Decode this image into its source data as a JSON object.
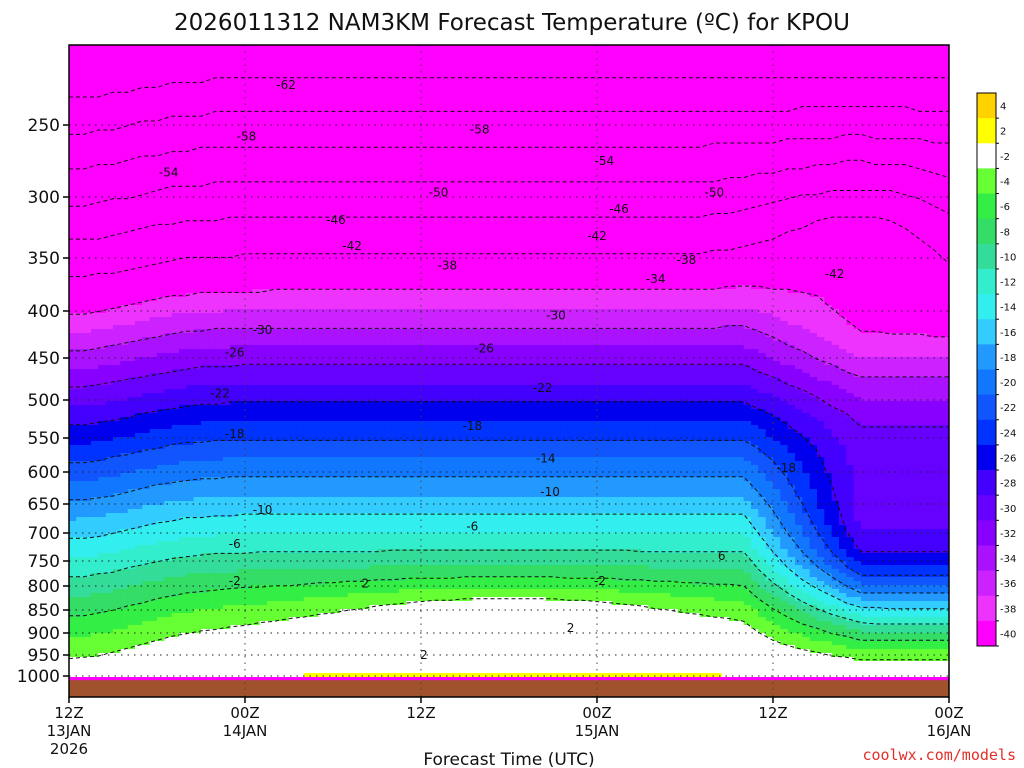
{
  "chart_data": {
    "type": "heatmap",
    "title": "2026011312 NAM3KM Forecast Temperature (ºC) for KPOU",
    "xlabel": "Forecast Time (UTC)",
    "ylabel": "",
    "credit": "coolwx.com/models",
    "x_ticks": [
      {
        "hour": 0,
        "line1": "12Z",
        "line2": "13JAN",
        "line3": "2026"
      },
      {
        "hour": 12,
        "line1": "00Z",
        "line2": "14JAN",
        "line3": ""
      },
      {
        "hour": 24,
        "line1": "12Z",
        "line2": "",
        "line3": ""
      },
      {
        "hour": 36,
        "line1": "00Z",
        "line2": "15JAN",
        "line3": ""
      },
      {
        "hour": 48,
        "line1": "12Z",
        "line2": "",
        "line3": ""
      },
      {
        "hour": 60,
        "line1": "00Z",
        "line2": "16JAN",
        "line3": ""
      }
    ],
    "xlim": [
      0,
      60
    ],
    "y_ticks": [
      250,
      300,
      350,
      400,
      450,
      500,
      550,
      600,
      650,
      700,
      750,
      800,
      850,
      900,
      950,
      1000
    ],
    "ylim": [
      1015,
      200
    ],
    "colorbar": {
      "colors": [
        "#ffd200",
        "#ffff00",
        "#ffffff",
        "#66ff33",
        "#33ee44",
        "#33dd66",
        "#33dd99",
        "#33eecc",
        "#33eeee",
        "#33ccff",
        "#2299ff",
        "#1177ff",
        "#1155ff",
        "#0033ff",
        "#0000ee",
        "#4400ff",
        "#6600ff",
        "#8800ff",
        "#aa11ff",
        "#cc22ff",
        "#ee33ff",
        "#ff00ff"
      ],
      "labels": [
        "4",
        "2",
        "-2",
        "-4",
        "-6",
        "-8",
        "-10",
        "-12",
        "-14",
        "-16",
        "-18",
        "-20",
        "-22",
        "-24",
        "-26",
        "-28",
        "-30",
        "-32",
        "-34",
        "-36",
        "-38",
        "-40"
      ]
    },
    "contour_labels": [
      {
        "v": "-62",
        "h": 14.8,
        "p": 225
      },
      {
        "v": "-58",
        "h": 12.1,
        "p": 258
      },
      {
        "v": "-58",
        "h": 28.0,
        "p": 253
      },
      {
        "v": "-54",
        "h": 6.8,
        "p": 283
      },
      {
        "v": "-54",
        "h": 36.5,
        "p": 275
      },
      {
        "v": "-50",
        "h": 25.2,
        "p": 297
      },
      {
        "v": "-50",
        "h": 44.0,
        "p": 297
      },
      {
        "v": "-46",
        "h": 18.2,
        "p": 319
      },
      {
        "v": "-46",
        "h": 37.5,
        "p": 310
      },
      {
        "v": "-42",
        "h": 19.3,
        "p": 340
      },
      {
        "v": "-42",
        "h": 36.0,
        "p": 332
      },
      {
        "v": "-42",
        "h": 52.2,
        "p": 365
      },
      {
        "v": "-38",
        "h": 25.8,
        "p": 357
      },
      {
        "v": "-38",
        "h": 42.1,
        "p": 352
      },
      {
        "v": "-34",
        "h": 40.0,
        "p": 370
      },
      {
        "v": "-30",
        "h": 13.2,
        "p": 420
      },
      {
        "v": "-30",
        "h": 33.2,
        "p": 405
      },
      {
        "v": "-26",
        "h": 11.3,
        "p": 444
      },
      {
        "v": "-26",
        "h": 28.3,
        "p": 440
      },
      {
        "v": "-22",
        "h": 10.3,
        "p": 492
      },
      {
        "v": "-22",
        "h": 32.3,
        "p": 486
      },
      {
        "v": "-18",
        "h": 11.3,
        "p": 545
      },
      {
        "v": "-18",
        "h": 27.5,
        "p": 534
      },
      {
        "v": "-18",
        "h": 48.9,
        "p": 594
      },
      {
        "v": "-14",
        "h": 32.5,
        "p": 580
      },
      {
        "v": "-10",
        "h": 32.8,
        "p": 631
      },
      {
        "v": "-10",
        "h": 13.2,
        "p": 660
      },
      {
        "v": "-6",
        "h": 11.3,
        "p": 720
      },
      {
        "v": "-6",
        "h": 27.5,
        "p": 689
      },
      {
        "v": "6",
        "h": 44.5,
        "p": 741
      },
      {
        "v": "-2",
        "h": 11.3,
        "p": 790
      },
      {
        "v": "-2",
        "h": 36.2,
        "p": 790
      },
      {
        "v": "2",
        "h": 20.2,
        "p": 795
      },
      {
        "v": "2",
        "h": 34.2,
        "p": 889
      },
      {
        "v": "2",
        "h": 24.2,
        "p": 950
      }
    ]
  }
}
